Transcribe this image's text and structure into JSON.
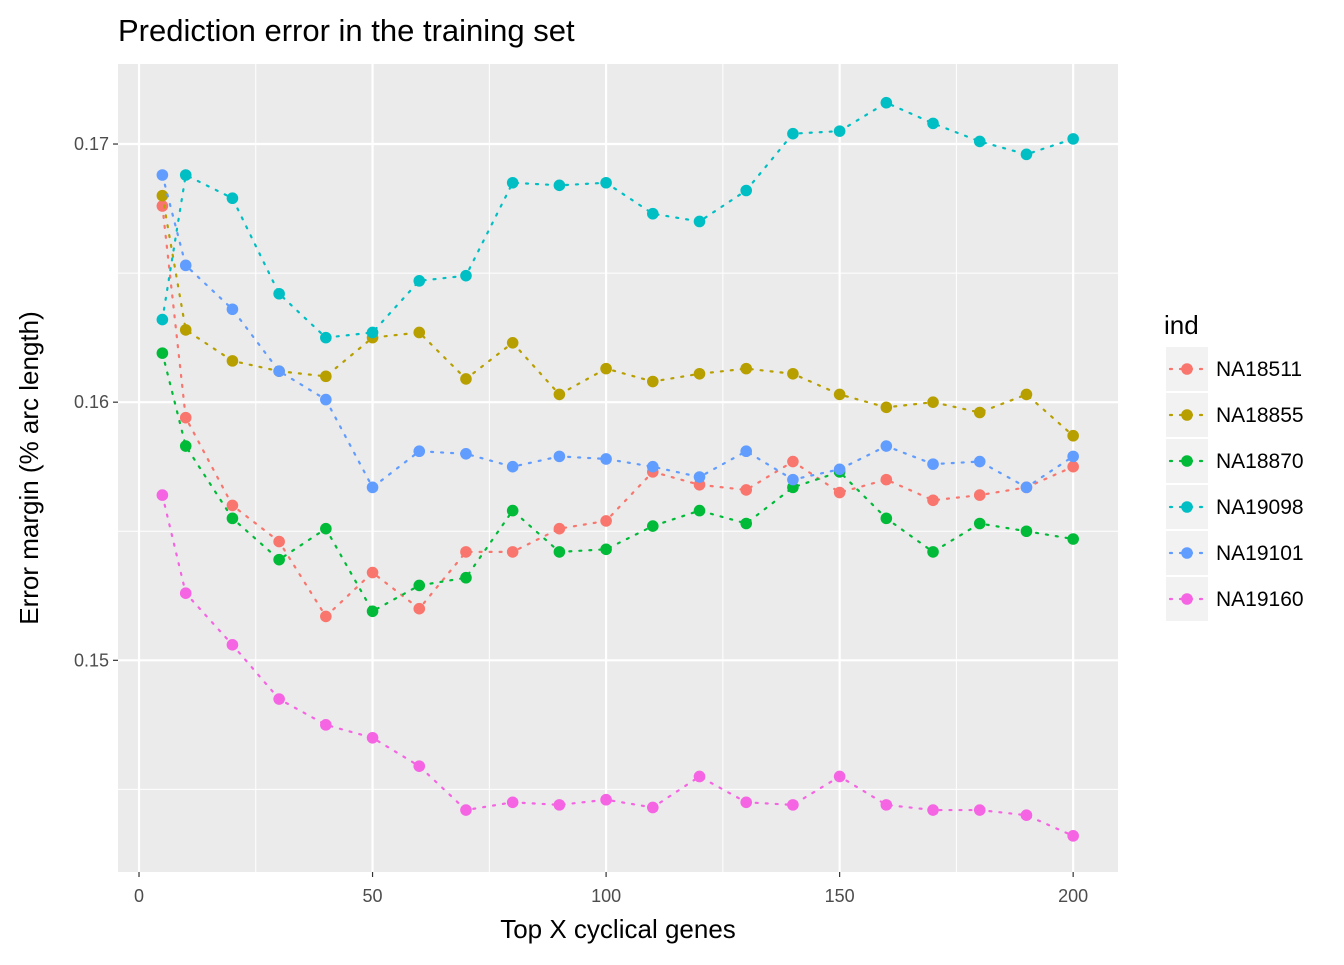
{
  "chart_data": {
    "type": "line",
    "title": "Prediction error in the training set",
    "xlabel": "Top X cyclical genes",
    "ylabel": "Error margin (% arc length)",
    "xlim": [
      -4.5,
      209.6
    ],
    "ylim": [
      0.1418,
      0.1731
    ],
    "x_ticks": [
      0,
      50,
      100,
      150,
      200
    ],
    "x_tick_labels": [
      "0",
      "50",
      "100",
      "150",
      "200"
    ],
    "y_ticks": [
      0.15,
      0.16,
      0.17
    ],
    "y_tick_labels": [
      "0.15",
      "0.16",
      "0.17"
    ],
    "grid": true,
    "legend_title": "ind",
    "legend_position": "right",
    "x": [
      5,
      10,
      20,
      30,
      40,
      50,
      60,
      70,
      80,
      90,
      100,
      110,
      120,
      130,
      140,
      150,
      160,
      170,
      180,
      190,
      200
    ],
    "series": [
      {
        "name": "NA18511",
        "color": "#F8766D",
        "values": [
          0.1676,
          0.1594,
          0.156,
          0.1546,
          0.1517,
          0.1534,
          0.152,
          0.1542,
          0.1542,
          0.1551,
          0.1554,
          0.1573,
          0.1568,
          0.1566,
          0.1577,
          0.1565,
          0.157,
          0.1562,
          0.1564,
          0.1567,
          0.1575
        ]
      },
      {
        "name": "NA18855",
        "color": "#B79F00",
        "values": [
          0.168,
          0.1628,
          0.1616,
          0.1612,
          0.161,
          0.1625,
          0.1627,
          0.1609,
          0.1623,
          0.1603,
          0.1613,
          0.1608,
          0.1611,
          0.1613,
          0.1611,
          0.1603,
          0.1598,
          0.16,
          0.1596,
          0.1603,
          0.1587
        ]
      },
      {
        "name": "NA18870",
        "color": "#00BA38",
        "values": [
          0.1619,
          0.1583,
          0.1555,
          0.1539,
          0.1551,
          0.1519,
          0.1529,
          0.1532,
          0.1558,
          0.1542,
          0.1543,
          0.1552,
          0.1558,
          0.1553,
          0.1567,
          0.1573,
          0.1555,
          0.1542,
          0.1553,
          0.155,
          0.1547
        ]
      },
      {
        "name": "NA19098",
        "color": "#00BFC4",
        "values": [
          0.1632,
          0.1688,
          0.1679,
          0.1642,
          0.1625,
          0.1627,
          0.1647,
          0.1649,
          0.1685,
          0.1684,
          0.1685,
          0.1673,
          0.167,
          0.1682,
          0.1704,
          0.1705,
          0.1716,
          0.1708,
          0.1701,
          0.1696,
          0.1702
        ]
      },
      {
        "name": "NA19101",
        "color": "#619CFF",
        "values": [
          0.1688,
          0.1653,
          0.1636,
          0.1612,
          0.1601,
          0.1567,
          0.1581,
          0.158,
          0.1575,
          0.1579,
          0.1578,
          0.1575,
          0.1571,
          0.1581,
          0.157,
          0.1574,
          0.1583,
          0.1576,
          0.1577,
          0.1567,
          0.1579
        ]
      },
      {
        "name": "NA19160",
        "color": "#F564E3",
        "values": [
          0.1564,
          0.1526,
          0.1506,
          0.1485,
          0.1475,
          0.147,
          0.1459,
          0.1442,
          0.1445,
          0.1444,
          0.1446,
          0.1443,
          0.1455,
          0.1445,
          0.1444,
          0.1455,
          0.1444,
          0.1442,
          0.1442,
          0.144,
          0.1432
        ]
      }
    ]
  }
}
